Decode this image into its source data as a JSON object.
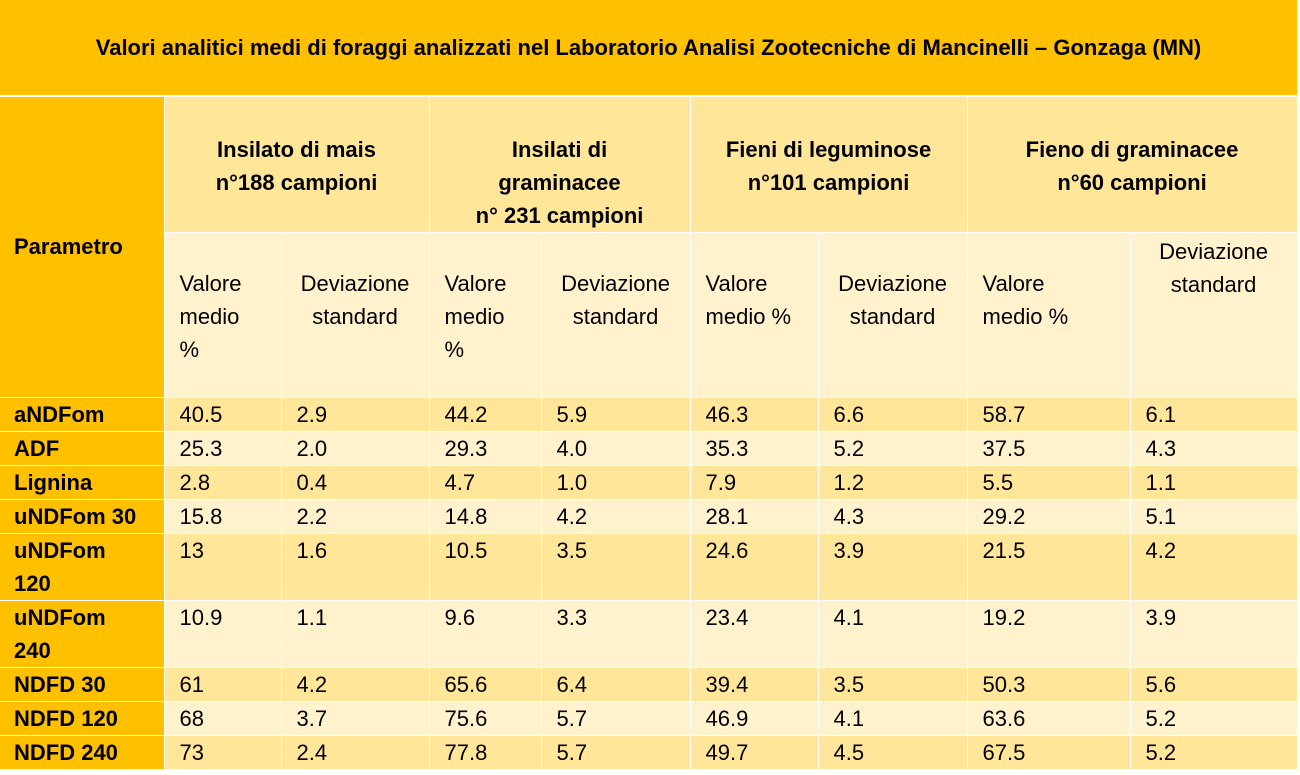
{
  "title": "Valori analitici medi di foraggi analizzati nel Laboratorio Analisi Zootecniche di Mancinelli – Gonzaga (MN)",
  "param_header": "Parametro",
  "groups": [
    {
      "line1": "Insilato di mais",
      "line2": "n°188 campioni",
      "line3": ""
    },
    {
      "line1": "Insilati di",
      "line2": "graminacee",
      "line3": "n° 231 campioni"
    },
    {
      "line1": "Fieni di leguminose",
      "line2": "n°101 campioni",
      "line3": ""
    },
    {
      "line1": "Fieno di graminacee",
      "line2": "n°60 campioni",
      "line3": ""
    }
  ],
  "subheaders": {
    "g1_mean": [
      "Valore",
      "medio",
      "%"
    ],
    "g1_sd": [
      "Deviazione",
      "standard"
    ],
    "g2_mean": [
      "Valore",
      "medio",
      "%"
    ],
    "g2_sd": [
      "Deviazione",
      "standard"
    ],
    "g3_mean": [
      "Valore",
      "medio %"
    ],
    "g3_sd": [
      "Deviazione",
      "standard"
    ],
    "g4_mean": [
      "Valore",
      "medio %"
    ],
    "g4_sd": [
      "Deviazione",
      "standard"
    ]
  },
  "rows": [
    {
      "param": "aNDFom",
      "v": [
        "40.5",
        "2.9",
        "44.2",
        "5.9",
        "46.3",
        "6.6",
        "58.7",
        "6.1"
      ]
    },
    {
      "param": "ADF",
      "v": [
        "25.3",
        "2.0",
        "29.3",
        "4.0",
        "35.3",
        "5.2",
        "37.5",
        "4.3"
      ]
    },
    {
      "param": "Lignina",
      "v": [
        "2.8",
        "0.4",
        "4.7",
        "1.0",
        "7.9",
        "1.2",
        "5.5",
        "1.1"
      ]
    },
    {
      "param": "uNDFom 30",
      "v": [
        "15.8",
        "2.2",
        "14.8",
        "4.2",
        "28.1",
        "4.3",
        "29.2",
        "5.1"
      ]
    },
    {
      "param_l1": "uNDFom",
      "param_l2": "120",
      "v": [
        "13",
        "1.6",
        "10.5",
        "3.5",
        "24.6",
        "3.9",
        "21.5",
        "4.2"
      ]
    },
    {
      "param_l1": "uNDFom",
      "param_l2": "240",
      "v": [
        "10.9",
        "1.1",
        "9.6",
        "3.3",
        "23.4",
        "4.1",
        "19.2",
        "3.9"
      ]
    },
    {
      "param": "NDFD 30",
      "v": [
        "61",
        "4.2",
        "65.6",
        "6.4",
        "39.4",
        "3.5",
        "50.3",
        "5.6"
      ]
    },
    {
      "param": "NDFD 120",
      "v": [
        "68",
        "3.7",
        "75.6",
        "5.7",
        "46.9",
        "4.1",
        "63.6",
        "5.2"
      ]
    },
    {
      "param": "NDFD 240",
      "v": [
        "73",
        "2.4",
        "77.8",
        "5.7",
        "49.7",
        "4.5",
        "67.5",
        "5.2"
      ]
    }
  ],
  "colors": {
    "header_gold": "#FFC000",
    "band_dark": "#FFE699",
    "band_light": "#FFF2CC"
  }
}
